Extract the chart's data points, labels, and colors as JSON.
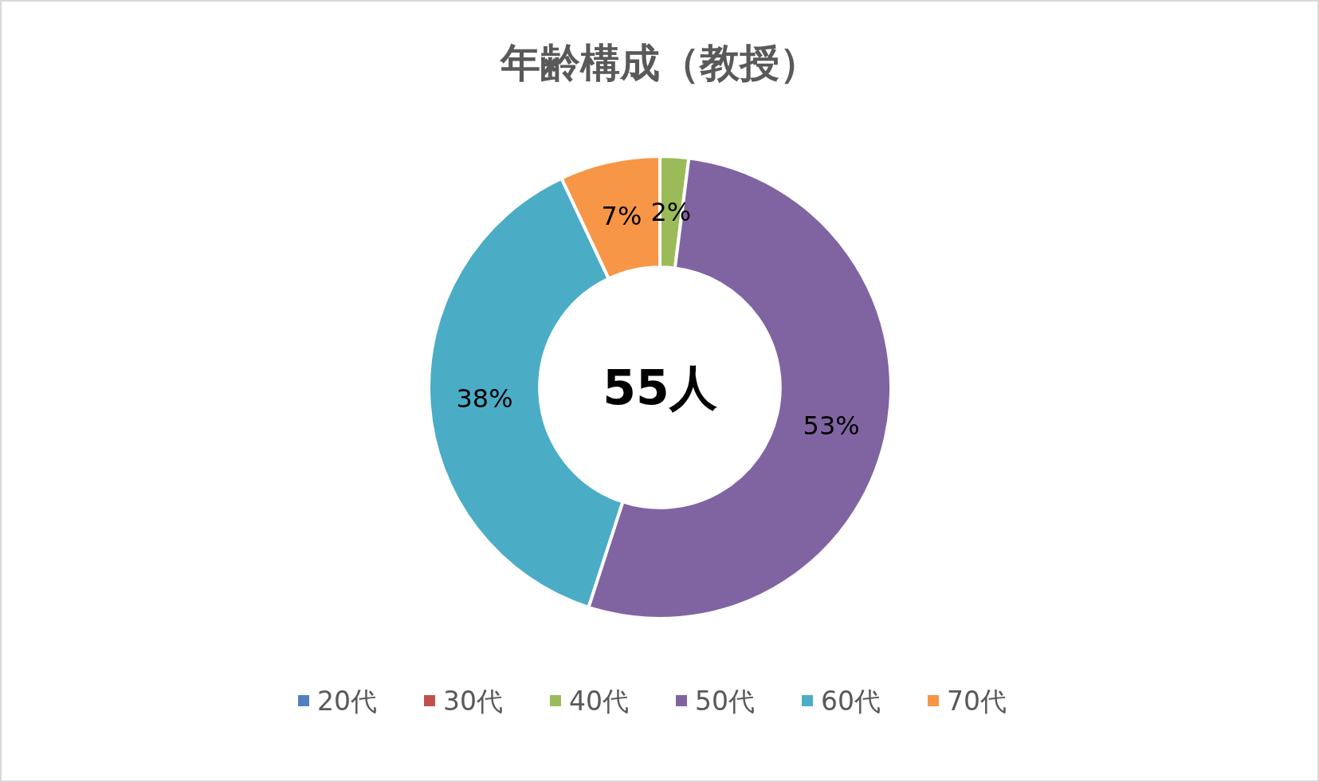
{
  "chart_data": {
    "type": "donut",
    "title": "年齢構成（教授）",
    "categories": [
      "20代",
      "30代",
      "40代",
      "50代",
      "60代",
      "70代"
    ],
    "values": [
      0,
      0,
      2,
      53,
      38,
      7
    ],
    "colors": [
      "#4f81bd",
      "#c0504d",
      "#9bbb59",
      "#8064a2",
      "#4bacc6",
      "#f79646"
    ],
    "value_labels": [
      null,
      null,
      "2%",
      "53%",
      "38%",
      "7%"
    ],
    "annotations": [
      "55人"
    ],
    "legend": "bottom"
  }
}
